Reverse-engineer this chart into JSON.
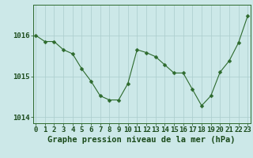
{
  "x": [
    0,
    1,
    2,
    3,
    4,
    5,
    6,
    7,
    8,
    9,
    10,
    11,
    12,
    13,
    14,
    15,
    16,
    17,
    18,
    19,
    20,
    21,
    22,
    23
  ],
  "y": [
    1016.0,
    1015.85,
    1015.85,
    1015.65,
    1015.55,
    1015.18,
    1014.88,
    1014.52,
    1014.42,
    1014.42,
    1014.82,
    1015.65,
    1015.58,
    1015.48,
    1015.28,
    1015.08,
    1015.08,
    1014.68,
    1014.28,
    1014.52,
    1015.1,
    1015.38,
    1015.82,
    1016.48
  ],
  "line_color": "#2d6a2d",
  "marker": "D",
  "marker_size": 2.5,
  "bg_color": "#cce8e8",
  "grid_color": "#aacccc",
  "axis_color": "#2d6a2d",
  "text_color": "#1a4a1a",
  "xlabel": "Graphe pression niveau de la mer (hPa)",
  "xlabel_fontsize": 7.5,
  "tick_fontsize": 6.5,
  "ylim": [
    1013.85,
    1016.75
  ],
  "yticks": [
    1014,
    1015,
    1016
  ],
  "xticks": [
    0,
    1,
    2,
    3,
    4,
    5,
    6,
    7,
    8,
    9,
    10,
    11,
    12,
    13,
    14,
    15,
    16,
    17,
    18,
    19,
    20,
    21,
    22,
    23
  ]
}
